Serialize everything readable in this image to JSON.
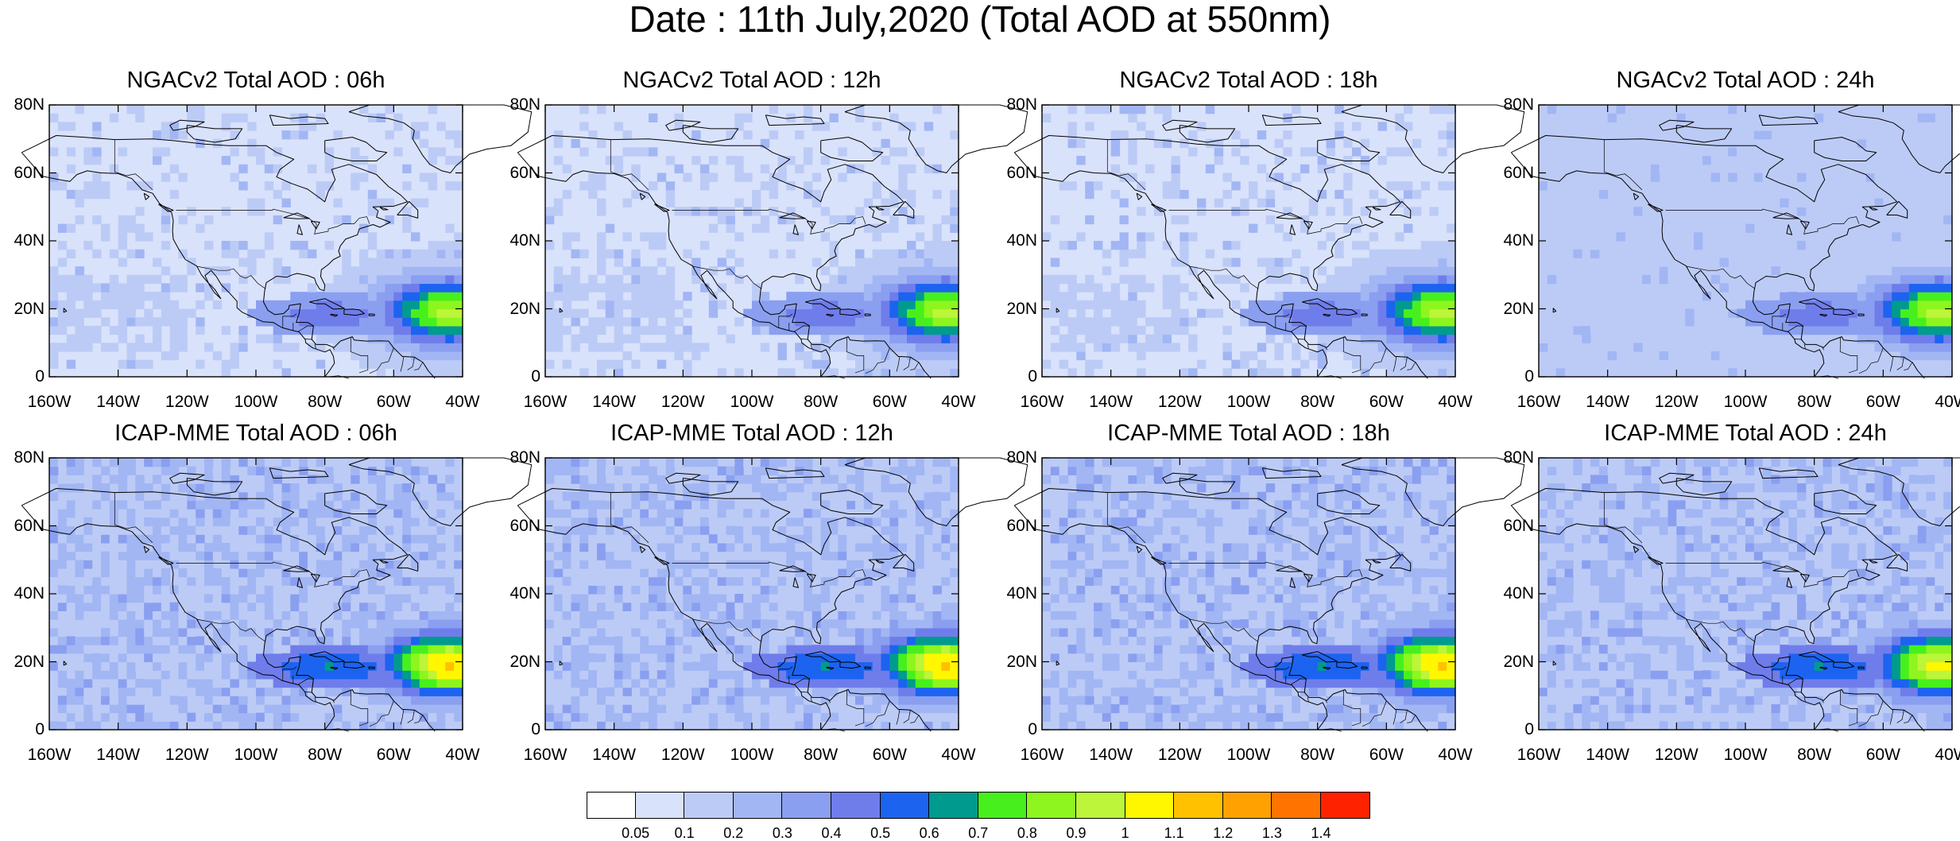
{
  "figure": {
    "title": "Date : 11th July,2020 (Total AOD at 550nm)"
  },
  "lat_labels": [
    "80N",
    "60N",
    "40N",
    "20N",
    "0"
  ],
  "lon_labels": [
    "160W",
    "140W",
    "120W",
    "100W",
    "80W",
    "60W",
    "40W"
  ],
  "panels": [
    {
      "title": "NGACv2 Total AOD : 06h",
      "model": "NGACv2",
      "lead": "06h",
      "plume_level": 0.8,
      "background_level": 0.05
    },
    {
      "title": "NGACv2 Total AOD : 12h",
      "model": "NGACv2",
      "lead": "12h",
      "plume_level": 0.8,
      "background_level": 0.05
    },
    {
      "title": "NGACv2 Total AOD : 18h",
      "model": "NGACv2",
      "lead": "18h",
      "plume_level": 0.8,
      "background_level": 0.05
    },
    {
      "title": "NGACv2 Total AOD : 24h",
      "model": "NGACv2",
      "lead": "24h",
      "plume_level": 0.8,
      "background_level": 0.1
    },
    {
      "title": "ICAP-MME Total AOD : 06h",
      "model": "ICAP-MME",
      "lead": "06h",
      "plume_level": 1.0,
      "background_level": 0.1
    },
    {
      "title": "ICAP-MME Total AOD : 12h",
      "model": "ICAP-MME",
      "lead": "12h",
      "plume_level": 1.0,
      "background_level": 0.1
    },
    {
      "title": "ICAP-MME Total AOD : 18h",
      "model": "ICAP-MME",
      "lead": "18h",
      "plume_level": 1.0,
      "background_level": 0.1
    },
    {
      "title": "ICAP-MME Total AOD : 24h",
      "model": "ICAP-MME",
      "lead": "24h",
      "plume_level": 0.9,
      "background_level": 0.1
    }
  ],
  "colorbar": {
    "labels": [
      "0.05",
      "0.1",
      "0.2",
      "0.3",
      "0.4",
      "0.5",
      "0.6",
      "0.7",
      "0.8",
      "0.9",
      "1",
      "1.1",
      "1.2",
      "1.3",
      "1.4"
    ],
    "colors": [
      "#ffffff",
      "#d9e2fb",
      "#bccbf6",
      "#a2b6f4",
      "#8a9ff0",
      "#6f7deb",
      "#1c63f0",
      "#009b8e",
      "#47f01d",
      "#8ef51e",
      "#bcf53a",
      "#fff700",
      "#ffc100",
      "#ffa100",
      "#ff7400",
      "#ff2200"
    ]
  }
}
